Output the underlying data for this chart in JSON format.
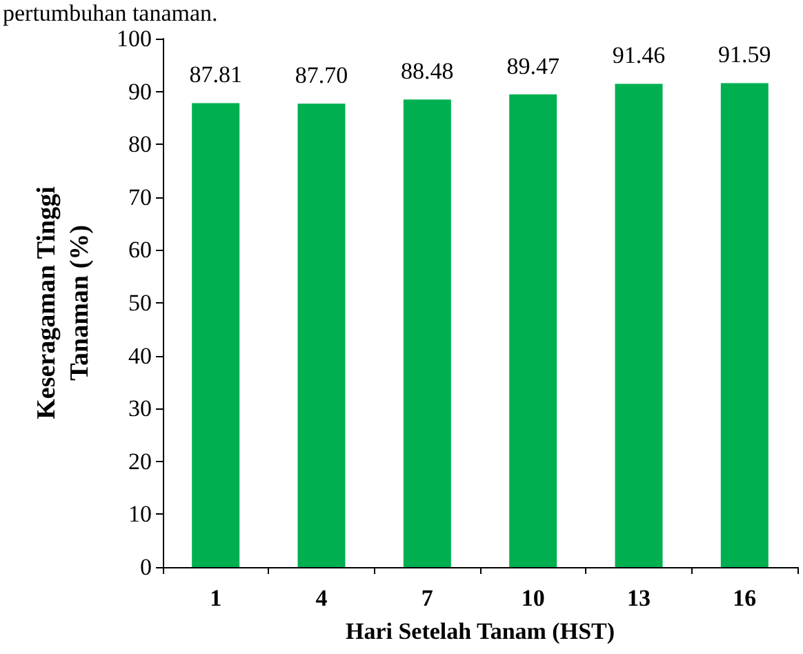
{
  "chart_data": {
    "type": "bar",
    "xlabel": "Hari Setelah Tanam (HST)",
    "ylabel": "Keseragaman Tinggi\nTanaman (%)",
    "annotations": [
      "pertumbuhan tanaman."
    ],
    "categories": [
      "1",
      "4",
      "7",
      "10",
      "13",
      "16"
    ],
    "values": [
      87.81,
      87.7,
      88.48,
      89.47,
      91.46,
      91.59
    ],
    "color": "#00b050",
    "ylim": [
      0,
      100
    ],
    "yticks": [
      0,
      10,
      20,
      30,
      40,
      50,
      60,
      70,
      80,
      90,
      100
    ],
    "grid": false,
    "value_labels": [
      "87.81",
      "87.70",
      "88.48",
      "89.47",
      "91.46",
      "91.59"
    ]
  }
}
